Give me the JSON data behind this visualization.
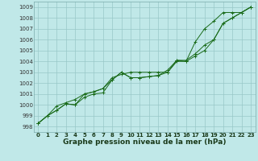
{
  "title": "Graphe pression niveau de la mer (hPa)",
  "bg_color": "#c0e8e8",
  "grid_color": "#98c8c8",
  "line_color": "#1a6b1a",
  "xlim": [
    -0.5,
    23.5
  ],
  "ylim": [
    997.5,
    1009.5
  ],
  "yticks": [
    998,
    999,
    1000,
    1001,
    1002,
    1003,
    1004,
    1005,
    1006,
    1007,
    1008,
    1009
  ],
  "xticks": [
    0,
    1,
    2,
    3,
    4,
    5,
    6,
    7,
    8,
    9,
    10,
    11,
    12,
    13,
    14,
    15,
    16,
    17,
    18,
    19,
    20,
    21,
    22,
    23
  ],
  "lines": [
    [
      998.3,
      999.0,
      999.5,
      1000.1,
      1000.0,
      1000.7,
      1001.0,
      1001.1,
      1002.3,
      1003.0,
      1002.5,
      1002.5,
      1002.6,
      1002.7,
      1003.2,
      1004.1,
      1004.0,
      1005.8,
      1007.0,
      1007.7,
      1008.5,
      1008.5,
      1008.5,
      1009.0
    ],
    [
      998.3,
      999.0,
      999.5,
      1000.1,
      1000.0,
      1001.0,
      1001.2,
      1001.5,
      1002.3,
      1003.0,
      1002.5,
      1002.5,
      1002.6,
      1002.7,
      1003.0,
      1004.1,
      1004.1,
      1004.7,
      1005.5,
      1006.0,
      1007.5,
      1008.0,
      1008.5,
      1009.0
    ],
    [
      998.3,
      999.0,
      999.9,
      1000.2,
      1000.5,
      1001.0,
      1001.2,
      1001.5,
      1002.5,
      1002.8,
      1003.0,
      1003.0,
      1003.0,
      1003.0,
      1003.0,
      1004.0,
      1004.0,
      1004.5,
      1005.0,
      1006.0,
      1007.5,
      1008.0,
      1008.5,
      1009.0
    ]
  ],
  "title_fontsize": 6.5,
  "tick_fontsize": 5.0
}
